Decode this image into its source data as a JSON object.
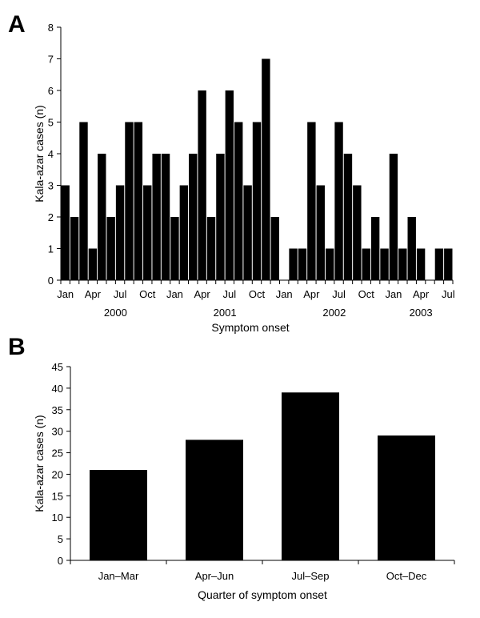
{
  "chart_data": [
    {
      "type": "bar",
      "panel_label": "A",
      "ylabel": "Kala-azar cases (n)",
      "xlabel": "Symptom onset",
      "ylim": [
        0,
        8
      ],
      "yticks": [
        0,
        1,
        2,
        3,
        4,
        5,
        6,
        7,
        8
      ],
      "categories": [
        "2000-01",
        "2000-02",
        "2000-03",
        "2000-04",
        "2000-05",
        "2000-06",
        "2000-07",
        "2000-08",
        "2000-09",
        "2000-10",
        "2000-11",
        "2000-12",
        "2001-01",
        "2001-02",
        "2001-03",
        "2001-04",
        "2001-05",
        "2001-06",
        "2001-07",
        "2001-08",
        "2001-09",
        "2001-10",
        "2001-11",
        "2001-12",
        "2002-01",
        "2002-02",
        "2002-03",
        "2002-04",
        "2002-05",
        "2002-06",
        "2002-07",
        "2002-08",
        "2002-09",
        "2002-10",
        "2002-11",
        "2002-12",
        "2003-01",
        "2003-02",
        "2003-03",
        "2003-04",
        "2003-05",
        "2003-06",
        "2003-07"
      ],
      "values": [
        3,
        2,
        5,
        1,
        4,
        2,
        3,
        5,
        5,
        3,
        4,
        4,
        2,
        3,
        4,
        6,
        2,
        4,
        6,
        5,
        3,
        5,
        7,
        2,
        0,
        1,
        1,
        5,
        3,
        1,
        5,
        4,
        3,
        1,
        2,
        1,
        4,
        1,
        2,
        1,
        0,
        1,
        1
      ],
      "month_tick_labels": [
        "Jan",
        "Apr",
        "Jul",
        "Oct",
        "Jan",
        "Apr",
        "Jul",
        "Oct",
        "Jan",
        "Apr",
        "Jul",
        "Oct",
        "Jan",
        "Apr",
        "Jul"
      ],
      "year_labels": [
        "2000",
        "2001",
        "2002",
        "2003"
      ],
      "grid": false,
      "bar_color": "#000000"
    },
    {
      "type": "bar",
      "panel_label": "B",
      "ylabel": "Kala-azar cases (n)",
      "xlabel": "Quarter of symptom onset",
      "ylim": [
        0,
        45
      ],
      "yticks": [
        0,
        5,
        10,
        15,
        20,
        25,
        30,
        35,
        40,
        45
      ],
      "categories": [
        "Jan–Mar",
        "Apr–Jun",
        "Jul–Sep",
        "Oct–Dec"
      ],
      "values": [
        21,
        28,
        39,
        29
      ],
      "grid": false,
      "bar_color": "#000000"
    }
  ]
}
